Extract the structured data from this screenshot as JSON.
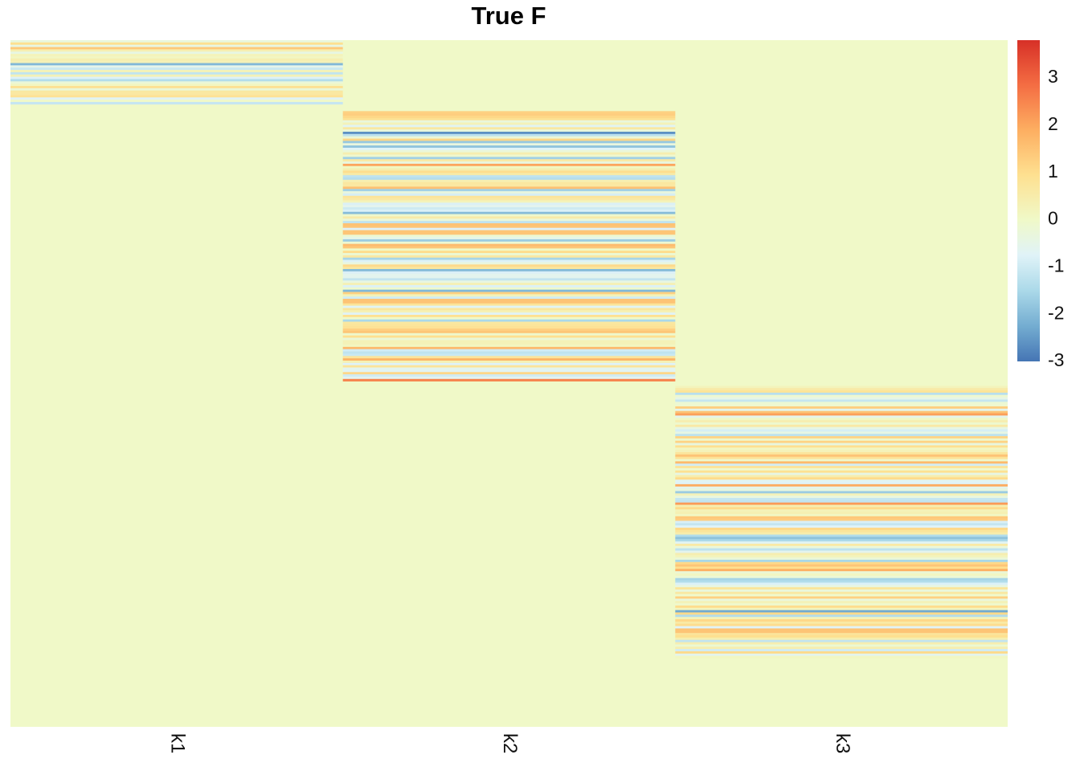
{
  "chart_data": {
    "type": "heatmap",
    "title": "True F",
    "columns": [
      "k1",
      "k2",
      "k3"
    ],
    "row_count": 300,
    "blocks": [
      {
        "column": "k1",
        "row_start": 0,
        "row_end": 28
      },
      {
        "column": "k2",
        "row_start": 31,
        "row_end": 149
      },
      {
        "column": "k3",
        "row_start": 151,
        "row_end": 270
      }
    ],
    "legend": {
      "min": -3,
      "max": 3.8,
      "ticks": [
        "3",
        "2",
        "1",
        "0",
        "-1",
        "-2",
        "-3"
      ],
      "tick_values": [
        3,
        2,
        1,
        0,
        -1,
        -2,
        -3
      ],
      "placement": "right"
    },
    "colors": {
      "neutral": "#f0f9c8",
      "palette": [
        "#4575b4",
        "#74add1",
        "#abd9e9",
        "#e0f3f8",
        "#f0f9c8",
        "#fee090",
        "#fdae61",
        "#f46d43",
        "#d73027"
      ]
    },
    "grid": false
  }
}
